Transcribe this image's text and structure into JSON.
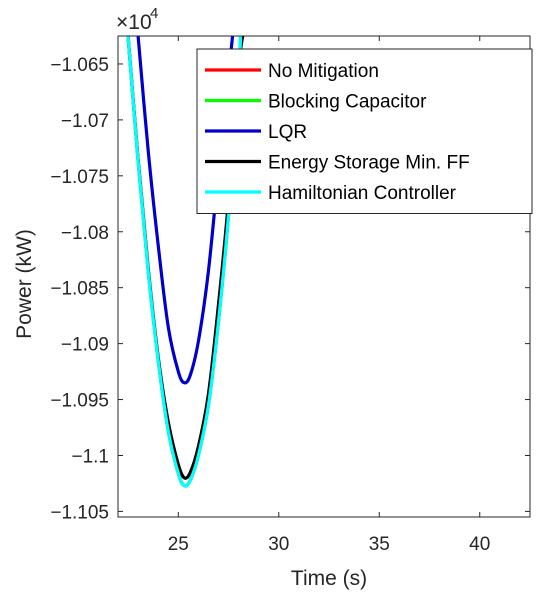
{
  "chart_data": {
    "type": "line",
    "xlabel": "Time (s)",
    "ylabel": "Power (kW)",
    "exponent_label": "×10",
    "exponent_power": "4",
    "xlim": [
      22,
      42.5
    ],
    "ylim": [
      -1.1055,
      -1.0625
    ],
    "x_ticks": [
      25,
      30,
      35,
      40
    ],
    "x_tick_labels": [
      "25",
      "30",
      "35",
      "40"
    ],
    "y_ticks": [
      -1.065,
      -1.07,
      -1.075,
      -1.08,
      -1.085,
      -1.09,
      -1.095,
      -1.1,
      -1.105
    ],
    "y_tick_labels": [
      "−1.065",
      "−1.07",
      "−1.075",
      "−1.08",
      "−1.085",
      "−1.09",
      "−1.095",
      "−1.1",
      "−1.105"
    ],
    "grid": false,
    "legend_position": "top-right",
    "series": [
      {
        "name": "No Mitigation",
        "color": "#ff0000",
        "x": [
          22.5,
          23,
          23.5,
          24,
          24.5,
          25,
          25.3,
          25.6,
          26,
          26.5,
          27,
          27.5,
          28,
          28.1
        ],
        "y": [
          -1.0625,
          -1.0737,
          -1.0835,
          -1.0915,
          -1.0978,
          -1.1016,
          -1.1027,
          -1.1022,
          -1.1,
          -1.0955,
          -1.088,
          -1.0785,
          -1.066,
          -1.0625
        ]
      },
      {
        "name": "Blocking Capacitor",
        "color": "#00ff00",
        "x": [
          22.5,
          23,
          23.5,
          24,
          24.5,
          25,
          25.3,
          25.6,
          26,
          26.5,
          27,
          27.5,
          28,
          28.1
        ],
        "y": [
          -1.0625,
          -1.0737,
          -1.0835,
          -1.0915,
          -1.0978,
          -1.1016,
          -1.1027,
          -1.1022,
          -1.1,
          -1.0955,
          -1.088,
          -1.0785,
          -1.066,
          -1.0625
        ]
      },
      {
        "name": "LQR",
        "color": "#0000cd",
        "x": [
          23,
          23.5,
          24,
          24.5,
          25,
          25.3,
          25.6,
          26,
          26.5,
          27,
          27.5,
          27.7
        ],
        "y": [
          -1.0625,
          -1.0727,
          -1.0812,
          -1.0885,
          -1.0925,
          -1.0935,
          -1.0928,
          -1.0898,
          -1.0835,
          -1.0745,
          -1.066,
          -1.0625
        ]
      },
      {
        "name": "Energy Storage Min. FF",
        "color": "#000000",
        "x": [
          22.5,
          23,
          23.5,
          24,
          24.5,
          25,
          25.3,
          25.6,
          26,
          26.5,
          27,
          27.5,
          28,
          28.2
        ],
        "y": [
          -1.0625,
          -1.0735,
          -1.0832,
          -1.0912,
          -1.097,
          -1.1008,
          -1.102,
          -1.1015,
          -1.0992,
          -1.0945,
          -1.0865,
          -1.0772,
          -1.0655,
          -1.0625
        ]
      },
      {
        "name": "Hamiltonian Controller",
        "color": "#00ffff",
        "x": [
          22.5,
          23,
          23.5,
          24,
          24.5,
          25,
          25.3,
          25.6,
          26,
          26.5,
          27,
          27.5,
          28,
          28.1
        ],
        "y": [
          -1.0625,
          -1.0737,
          -1.0835,
          -1.0915,
          -1.0978,
          -1.1016,
          -1.1027,
          -1.1022,
          -1.1,
          -1.0955,
          -1.088,
          -1.0785,
          -1.066,
          -1.0625
        ]
      }
    ]
  }
}
